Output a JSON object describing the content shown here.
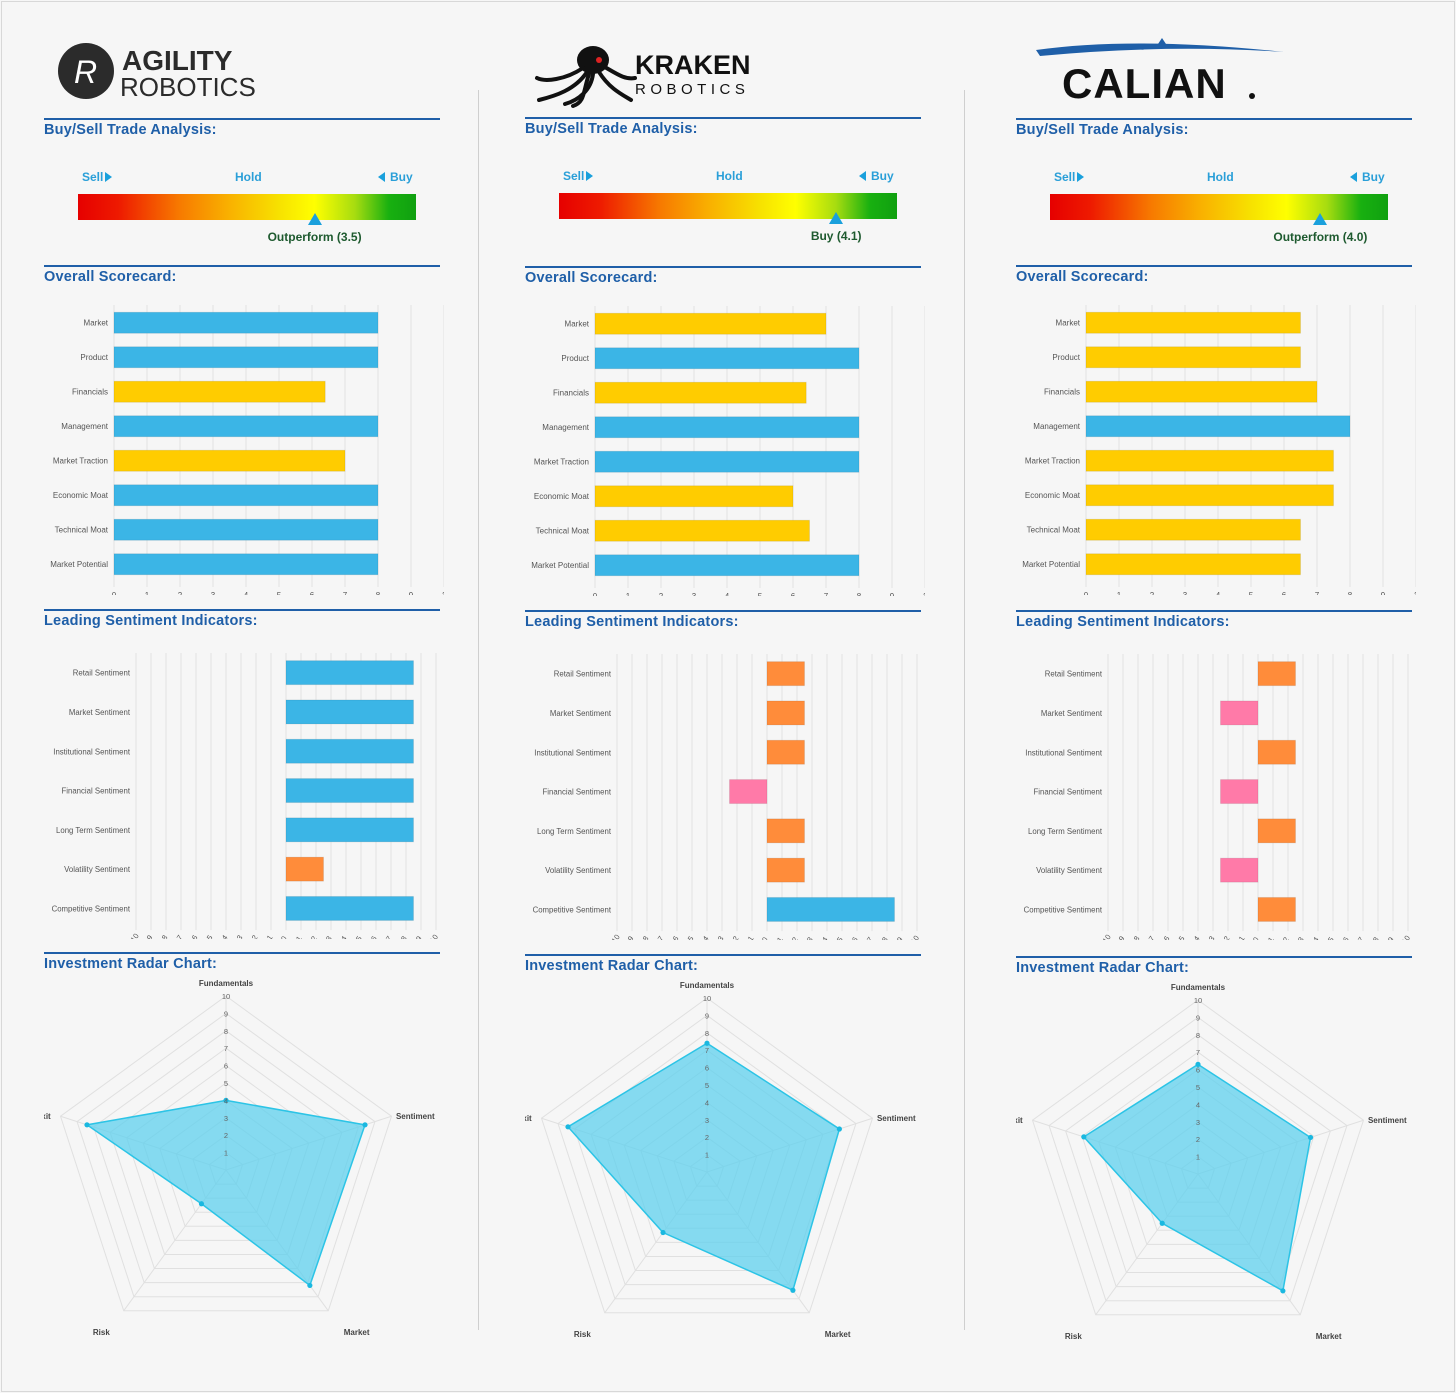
{
  "section_titles": {
    "trade": "Buy/Sell Trade Analysis:",
    "scorecard": "Overall Scorecard:",
    "sentiment": "Leading Sentiment Indicators:",
    "radar": "Investment Radar Chart:"
  },
  "trade_labels": {
    "sell": "Sell",
    "hold": "Hold",
    "buy": "Buy"
  },
  "colors": {
    "blue": "#3bb5e6",
    "yellow": "#ffcc00",
    "orange": "#ff8c3a",
    "pink": "#ff7aa8",
    "title": "#1f5fa8",
    "radar_fill": "#5fd0ee"
  },
  "companies": [
    {
      "logo": {
        "name_top": "AGILITY",
        "name_bottom": "ROBOTICS"
      },
      "rating": {
        "label": "Outperform (3.5)",
        "value": 3.5
      },
      "chart_data": [
        {
          "type": "bar",
          "title": "Overall Scorecard",
          "categories": [
            "Market",
            "Product",
            "Financials",
            "Management",
            "Market Traction",
            "Economic Moat",
            "Technical Moat",
            "Market Potential"
          ],
          "values": [
            8,
            8,
            6.4,
            8,
            7,
            8,
            8,
            8
          ],
          "colors": [
            "blue",
            "blue",
            "yellow",
            "blue",
            "yellow",
            "blue",
            "blue",
            "blue"
          ],
          "xlim": [
            0,
            10
          ],
          "ticks": [
            "0",
            "1",
            "2",
            "3",
            "4",
            "5",
            "6",
            "7",
            "8",
            "9",
            "1"
          ]
        },
        {
          "type": "bar",
          "title": "Leading Sentiment Indicators",
          "categories": [
            "Retail Sentiment",
            "Market Sentiment",
            "Institutional Sentiment",
            "Financial Sentiment",
            "Long Term Sentiment",
            "Volatility Sentiment",
            "Competitive Sentiment"
          ],
          "values": [
            8.5,
            8.5,
            8.5,
            8.5,
            8.5,
            2.5,
            8.5
          ],
          "colors": [
            "blue",
            "blue",
            "blue",
            "blue",
            "blue",
            "orange",
            "blue"
          ],
          "xlim": [
            -10,
            10
          ]
        },
        {
          "type": "radar",
          "title": "Investment Radar Chart",
          "axes": [
            "Fundamentals",
            "Sentiment",
            "Market",
            "Risk",
            "Exit"
          ],
          "values": [
            4,
            8.4,
            8.2,
            2.4,
            8.4
          ],
          "rlim": [
            0,
            10
          ]
        }
      ]
    },
    {
      "logo": {
        "name_top": "KRAKEN",
        "name_bottom": "ROBOTICS"
      },
      "rating": {
        "label": "Buy (4.1)",
        "value": 4.1
      },
      "chart_data": [
        {
          "type": "bar",
          "title": "Overall Scorecard",
          "categories": [
            "Market",
            "Product",
            "Financials",
            "Management",
            "Market Traction",
            "Economic Moat",
            "Technical Moat",
            "Market Potential"
          ],
          "values": [
            7,
            8,
            6.4,
            8,
            8,
            6,
            6.5,
            8
          ],
          "colors": [
            "yellow",
            "blue",
            "yellow",
            "blue",
            "blue",
            "yellow",
            "yellow",
            "blue"
          ],
          "xlim": [
            0,
            10
          ],
          "ticks": [
            "0",
            "1",
            "2",
            "3",
            "4",
            "5",
            "6",
            "7",
            "8",
            "9",
            "1"
          ]
        },
        {
          "type": "bar",
          "title": "Leading Sentiment Indicators",
          "categories": [
            "Retail Sentiment",
            "Market Sentiment",
            "Institutional Sentiment",
            "Financial Sentiment",
            "Long Term Sentiment",
            "Volatility Sentiment",
            "Competitive Sentiment"
          ],
          "values": [
            2.5,
            2.5,
            2.5,
            -2.5,
            2.5,
            2.5,
            8.5
          ],
          "colors": [
            "orange",
            "orange",
            "orange",
            "pink",
            "orange",
            "orange",
            "blue"
          ],
          "xlim": [
            -10,
            10
          ]
        },
        {
          "type": "radar",
          "title": "Investment Radar Chart",
          "axes": [
            "Fundamentals",
            "Sentiment",
            "Market",
            "Risk",
            "Exit"
          ],
          "values": [
            7.4,
            8,
            8.4,
            4.3,
            8.4
          ],
          "rlim": [
            0,
            10
          ]
        }
      ]
    },
    {
      "logo": {
        "name_top": "CALIAN",
        "name_bottom": ""
      },
      "rating": {
        "label": "Outperform (4.0)",
        "value": 4.0
      },
      "chart_data": [
        {
          "type": "bar",
          "title": "Overall Scorecard",
          "categories": [
            "Market",
            "Product",
            "Financials",
            "Management",
            "Market Traction",
            "Economic Moat",
            "Technical Moat",
            "Market Potential"
          ],
          "values": [
            6.5,
            6.5,
            7,
            8,
            7.5,
            7.5,
            6.5,
            6.5
          ],
          "colors": [
            "yellow",
            "yellow",
            "yellow",
            "blue",
            "yellow",
            "yellow",
            "yellow",
            "yellow"
          ],
          "xlim": [
            0,
            10
          ],
          "ticks": [
            "0",
            "1",
            "2",
            "3",
            "4",
            "5",
            "6",
            "7",
            "8",
            "9",
            "1"
          ]
        },
        {
          "type": "bar",
          "title": "Leading Sentiment Indicators",
          "categories": [
            "Retail Sentiment",
            "Market Sentiment",
            "Institutional Sentiment",
            "Financial Sentiment",
            "Long Term Sentiment",
            "Volatility Sentiment",
            "Competitive Sentiment"
          ],
          "values": [
            2.5,
            -2.5,
            2.5,
            -2.5,
            2.5,
            -2.5,
            2.5
          ],
          "colors": [
            "orange",
            "pink",
            "orange",
            "pink",
            "orange",
            "pink",
            "orange"
          ],
          "xlim": [
            -10,
            10
          ]
        },
        {
          "type": "radar",
          "title": "Investment Radar Chart",
          "axes": [
            "Fundamentals",
            "Sentiment",
            "Market",
            "Risk",
            "Exit"
          ],
          "values": [
            6.3,
            6.8,
            8.3,
            3.5,
            6.9
          ],
          "rlim": [
            0,
            10
          ]
        }
      ]
    }
  ]
}
